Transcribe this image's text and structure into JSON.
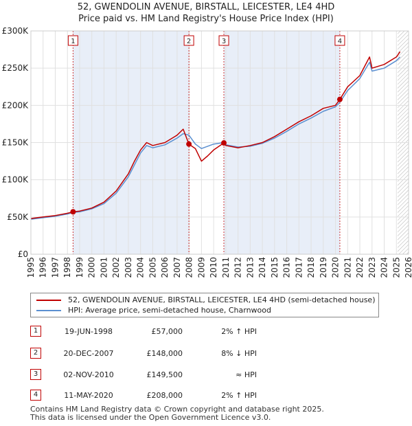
{
  "title": {
    "line1": "52, GWENDOLIN AVENUE, BIRSTALL, LEICESTER, LE4 4HD",
    "line2": "Price paid vs. HM Land Registry's House Price Index (HPI)"
  },
  "legend": {
    "property": "52, GWENDOLIN AVENUE, BIRSTALL, LEICESTER, LE4 4HD (semi-detached house)",
    "hpi": "HPI: Average price, semi-detached house, Charnwood"
  },
  "colors": {
    "property": "#c00000",
    "hpi": "#5b8fd0",
    "shade": "#e8eef8",
    "grid": "#e0e0e0"
  },
  "transactions": [
    {
      "num": "1",
      "date": "19-JUN-1998",
      "price": "£57,000",
      "hpi": "2% ↑ HPI"
    },
    {
      "num": "2",
      "date": "20-DEC-2007",
      "price": "£148,000",
      "hpi": "8% ↓ HPI"
    },
    {
      "num": "3",
      "date": "02-NOV-2010",
      "price": "£149,500",
      "hpi": "≈ HPI"
    },
    {
      "num": "4",
      "date": "11-MAY-2020",
      "price": "£208,000",
      "hpi": "2% ↑ HPI"
    }
  ],
  "footer": {
    "line1": "Contains HM Land Registry data © Crown copyright and database right 2025.",
    "line2": "This data is licensed under the Open Government Licence v3.0."
  },
  "chart_data": {
    "type": "line",
    "title": "Price paid vs. HM Land Registry's House Price Index (HPI)",
    "xlabel": "",
    "ylabel": "",
    "xlim": [
      1995,
      2026
    ],
    "ylim": [
      0,
      300000
    ],
    "ytick_labels": [
      "£0",
      "£50K",
      "£100K",
      "£150K",
      "£200K",
      "£250K",
      "£300K"
    ],
    "xtick_labels": [
      "1995",
      "1996",
      "1997",
      "1998",
      "1999",
      "2000",
      "2001",
      "2002",
      "2003",
      "2004",
      "2005",
      "2006",
      "2007",
      "2008",
      "2009",
      "2010",
      "2011",
      "2012",
      "2013",
      "2014",
      "2015",
      "2016",
      "2017",
      "2018",
      "2019",
      "2020",
      "2021",
      "2022",
      "2023",
      "2024",
      "2025",
      "2026"
    ],
    "series": [
      {
        "name": "52, GWENDOLIN AVENUE, BIRSTALL, LEICESTER, LE4 4HD (semi-detached house)",
        "x": [
          1995,
          1996,
          1997,
          1998,
          1998.46,
          1999,
          2000,
          2001,
          2002,
          2003,
          2003.5,
          2004,
          2004.5,
          2005,
          2006,
          2007,
          2007.5,
          2007.97,
          2008.5,
          2009,
          2009.5,
          2010,
          2010.84,
          2011,
          2012,
          2013,
          2014,
          2015,
          2016,
          2017,
          2018,
          2019,
          2020,
          2020.36,
          2021,
          2022,
          2022.8,
          2023,
          2024,
          2025,
          2025.3
        ],
        "values": [
          48000,
          50000,
          52000,
          55000,
          57000,
          58000,
          62000,
          70000,
          85000,
          108000,
          125000,
          140000,
          150000,
          146000,
          150000,
          160000,
          168000,
          148000,
          142000,
          125000,
          132000,
          140000,
          149500,
          146000,
          143000,
          146000,
          150000,
          158000,
          168000,
          178000,
          186000,
          196000,
          200000,
          208000,
          225000,
          240000,
          265000,
          250000,
          255000,
          265000,
          272000
        ]
      },
      {
        "name": "HPI: Average price, semi-detached house, Charnwood",
        "x": [
          1995,
          1996,
          1997,
          1998,
          1998.46,
          1999,
          2000,
          2001,
          2002,
          2003,
          2003.5,
          2004,
          2004.5,
          2005,
          2006,
          2007,
          2007.5,
          2007.97,
          2008.5,
          2009,
          2009.5,
          2010,
          2010.84,
          2011,
          2012,
          2013,
          2014,
          2015,
          2016,
          2017,
          2018,
          2019,
          2020,
          2020.36,
          2021,
          2022,
          2022.8,
          2023,
          2024,
          2025,
          2025.3
        ],
        "values": [
          47000,
          49000,
          51000,
          54000,
          56000,
          57000,
          61000,
          68000,
          82000,
          104000,
          120000,
          136000,
          146000,
          143000,
          147000,
          156000,
          162000,
          160000,
          148000,
          142000,
          145000,
          148000,
          150000,
          147000,
          144000,
          145000,
          149000,
          156000,
          165000,
          175000,
          183000,
          192000,
          198000,
          204000,
          220000,
          236000,
          258000,
          246000,
          250000,
          260000,
          265000
        ]
      }
    ],
    "annotations": [
      {
        "label": "1",
        "x": 1998.46,
        "y": 57000
      },
      {
        "label": "2",
        "x": 2007.97,
        "y": 148000
      },
      {
        "label": "3",
        "x": 2010.84,
        "y": 149500
      },
      {
        "label": "4",
        "x": 2020.36,
        "y": 208000
      }
    ],
    "shaded_ranges": [
      [
        1998.46,
        2007.97
      ],
      [
        2010.84,
        2020.36
      ]
    ],
    "hatched_from": 2025.1
  }
}
